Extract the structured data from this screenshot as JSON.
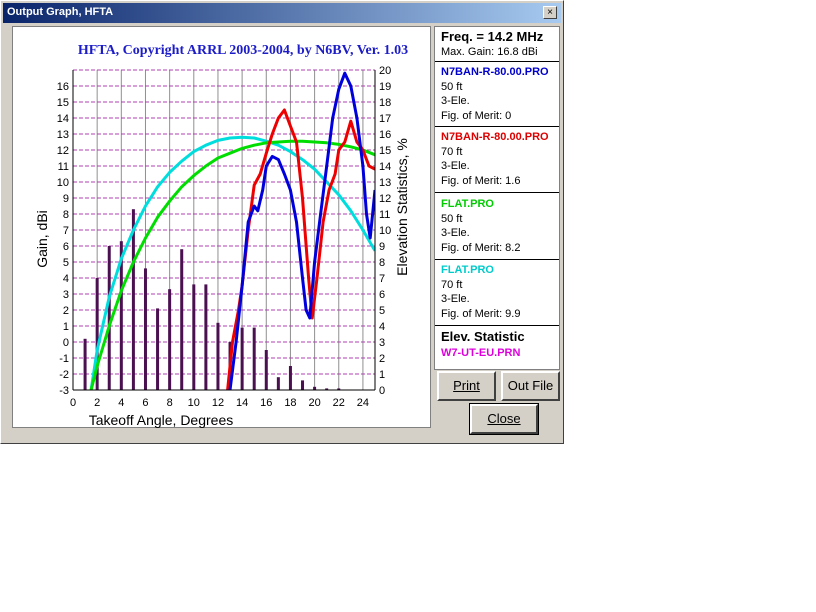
{
  "window": {
    "title": "Output Graph, HFTA",
    "close_glyph": "×"
  },
  "chart_data": {
    "type": "line",
    "title": "HFTA, Copyright ARRL 2003-2004, by N6BV, Ver. 1.03",
    "xlabel": "Takeoff Angle, Degrees",
    "ylabel": "Gain, dBi",
    "y2label": "Elevation Statistics, %",
    "xlim": [
      0,
      25
    ],
    "ylim": [
      -3,
      17
    ],
    "y2lim": [
      0,
      20
    ],
    "x_ticks": [
      "0",
      "2",
      "4",
      "6",
      "8",
      "10",
      "12",
      "14",
      "16",
      "18",
      "20",
      "22",
      "24"
    ],
    "y_ticks": [
      "-3",
      "-2",
      "-1",
      "0",
      "1",
      "2",
      "3",
      "4",
      "5",
      "6",
      "7",
      "8",
      "9",
      "10",
      "11",
      "12",
      "13",
      "14",
      "15",
      "16"
    ],
    "y2_ticks": [
      "0",
      "1",
      "2",
      "3",
      "4",
      "5",
      "6",
      "7",
      "8",
      "9",
      "10",
      "11",
      "12",
      "13",
      "14",
      "15",
      "16",
      "17",
      "18",
      "19",
      "20"
    ],
    "grid": true,
    "series": [
      {
        "name": "N7BAN-R-80.00.PRO",
        "color": "#0000dd",
        "points": [
          [
            13,
            -3
          ],
          [
            13.5,
            0
          ],
          [
            14,
            3.5
          ],
          [
            14.5,
            7.5
          ],
          [
            15,
            8.5
          ],
          [
            15.3,
            8.2
          ],
          [
            15.7,
            9.5
          ],
          [
            16,
            11
          ],
          [
            16.5,
            11.6
          ],
          [
            17,
            11.4
          ],
          [
            17.5,
            10.5
          ],
          [
            18,
            9.5
          ],
          [
            18.5,
            7.5
          ],
          [
            19,
            4
          ],
          [
            19.3,
            2
          ],
          [
            19.6,
            1.5
          ],
          [
            20,
            5
          ],
          [
            20.5,
            8
          ],
          [
            21,
            11
          ],
          [
            21.5,
            14
          ],
          [
            22,
            15.8
          ],
          [
            22.5,
            16.8
          ],
          [
            23,
            16
          ],
          [
            23.5,
            14
          ],
          [
            24,
            11
          ],
          [
            24.3,
            8
          ],
          [
            24.6,
            6.5
          ],
          [
            25,
            9.5
          ]
        ]
      },
      {
        "name": "N7BAN-R-80.00.PRO",
        "color": "#ee0000",
        "points": [
          [
            12.8,
            -3
          ],
          [
            13.2,
            0
          ],
          [
            13.7,
            2
          ],
          [
            14,
            3.5
          ],
          [
            14.5,
            7
          ],
          [
            15,
            9.8
          ],
          [
            15.5,
            10.5
          ],
          [
            16,
            11.8
          ],
          [
            16.5,
            13
          ],
          [
            17,
            14
          ],
          [
            17.5,
            14.5
          ],
          [
            18,
            13.5
          ],
          [
            18.5,
            12.5
          ],
          [
            19,
            9
          ],
          [
            19.5,
            4
          ],
          [
            19.8,
            1.5
          ],
          [
            20.2,
            4
          ],
          [
            20.7,
            7.5
          ],
          [
            21.2,
            9.5
          ],
          [
            21.7,
            10.5
          ],
          [
            22,
            12
          ],
          [
            22.5,
            12.5
          ],
          [
            23,
            13.8
          ],
          [
            23.5,
            12.5
          ],
          [
            24,
            12
          ],
          [
            24.5,
            11
          ],
          [
            25,
            10.8
          ]
        ]
      },
      {
        "name": "FLAT.PRO",
        "color": "#00dd00",
        "points": [
          [
            1.5,
            -3
          ],
          [
            2,
            -1.5
          ],
          [
            3,
            1
          ],
          [
            4,
            3.2
          ],
          [
            5,
            5
          ],
          [
            6,
            6.5
          ],
          [
            7,
            7.8
          ],
          [
            8,
            8.8
          ],
          [
            9,
            9.7
          ],
          [
            10,
            10.4
          ],
          [
            11,
            11
          ],
          [
            12,
            11.5
          ],
          [
            13,
            11.8
          ],
          [
            14,
            12.1
          ],
          [
            15,
            12.3
          ],
          [
            16,
            12.45
          ],
          [
            17,
            12.5
          ],
          [
            18,
            12.55
          ],
          [
            19,
            12.55
          ],
          [
            20,
            12.5
          ],
          [
            21,
            12.45
          ],
          [
            22,
            12.35
          ],
          [
            23,
            12.2
          ],
          [
            24,
            12
          ],
          [
            25,
            11.7
          ]
        ]
      },
      {
        "name": "FLAT.PRO",
        "color": "#00dddd",
        "points": [
          [
            1.5,
            -3
          ],
          [
            2,
            -0.5
          ],
          [
            3,
            2.8
          ],
          [
            4,
            5.2
          ],
          [
            5,
            7
          ],
          [
            6,
            8.5
          ],
          [
            7,
            9.7
          ],
          [
            8,
            10.6
          ],
          [
            9,
            11.3
          ],
          [
            10,
            11.9
          ],
          [
            11,
            12.3
          ],
          [
            12,
            12.6
          ],
          [
            13,
            12.75
          ],
          [
            14,
            12.8
          ],
          [
            15,
            12.75
          ],
          [
            16,
            12.55
          ],
          [
            17,
            12.3
          ],
          [
            18,
            11.9
          ],
          [
            19,
            11.4
          ],
          [
            20,
            10.8
          ],
          [
            21,
            10
          ],
          [
            22,
            9.2
          ],
          [
            23,
            8.2
          ],
          [
            24,
            7
          ],
          [
            25,
            5.7
          ]
        ]
      }
    ],
    "bars": {
      "name": "W7-UT-EU.PRN",
      "color": "#4a1050",
      "x": [
        1,
        2,
        3,
        4,
        5,
        6,
        7,
        8,
        9,
        10,
        11,
        12,
        13,
        14,
        15,
        16,
        17,
        18,
        19,
        20,
        21,
        22
      ],
      "values": [
        3.2,
        7,
        9,
        9.3,
        11.3,
        7.6,
        5.1,
        6.3,
        8.8,
        6.6,
        6.6,
        4.2,
        3,
        3.9,
        3.9,
        2.5,
        0.8,
        1.5,
        0.6,
        0.2,
        0.1,
        0.1
      ]
    }
  },
  "panel": {
    "freq": "Freq. = 14.2 MHz",
    "max_gain": "Max. Gain: 16.8 dBi",
    "entries": [
      {
        "file": "N7BAN-R-80.00.PRO",
        "color": "#0000cc",
        "height": "50 ft",
        "ele": "3-Ele.",
        "merit": "Fig. of Merit: 0"
      },
      {
        "file": "N7BAN-R-80.00.PRO",
        "color": "#dd0000",
        "height": "70 ft",
        "ele": "3-Ele.",
        "merit": "Fig. of Merit: 1.6"
      },
      {
        "file": "FLAT.PRO",
        "color": "#00cc00",
        "height": "50 ft",
        "ele": "3-Ele.",
        "merit": "Fig. of Merit: 8.2"
      },
      {
        "file": "FLAT.PRO",
        "color": "#00cccc",
        "height": "70 ft",
        "ele": "3-Ele.",
        "merit": "Fig. of Merit: 9.9"
      }
    ],
    "elev_heading": "Elev. Statistic",
    "elev_file": "W7-UT-EU.PRN",
    "elev_color": "#dd00dd"
  },
  "buttons": {
    "print": "Print",
    "out_file": "Out File",
    "close": "Close"
  }
}
